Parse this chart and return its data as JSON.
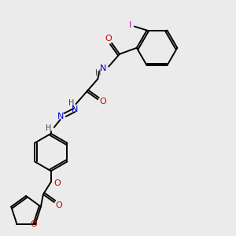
{
  "background_color": "#ebebeb",
  "figure_size": [
    3.0,
    3.0
  ],
  "dpi": 100,
  "line_color": "#000000",
  "line_width": 1.4,
  "atom_colors": {
    "O": "#cc0000",
    "N": "#0000cc",
    "H": "#404040",
    "I": "#bb00bb",
    "C": "#000000"
  },
  "font_size": 7.5
}
